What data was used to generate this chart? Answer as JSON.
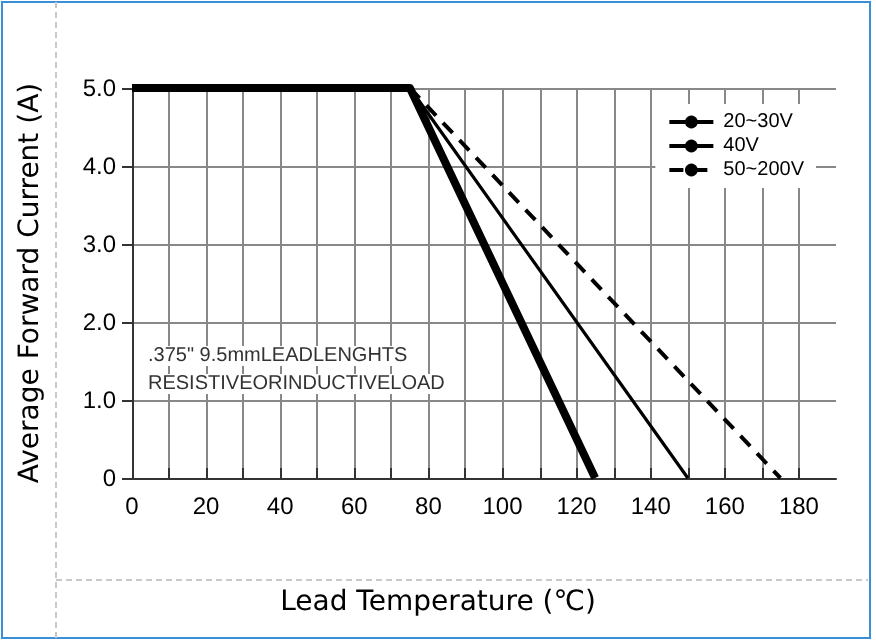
{
  "chart_data": {
    "type": "line",
    "xlabel": "Lead Temperature (℃)",
    "ylabel": "Average Forward Current (A)",
    "annotations": [
      ".375\" 9.5mmLEADLENGHTS",
      "RESISTIVEORINDUCTIVELOAD"
    ],
    "series": [
      {
        "name": "20~30V",
        "color": "#000000",
        "line_style": "solid",
        "x": [
          0,
          75,
          125
        ],
        "values": [
          5,
          5,
          0
        ]
      },
      {
        "name": "40V",
        "color": "#000000",
        "line_style": "solid",
        "x": [
          0,
          75,
          150
        ],
        "values": [
          5,
          5,
          0
        ]
      },
      {
        "name": "50~200V",
        "color": "#000000",
        "line_style": "dashed",
        "x": [
          75,
          175
        ],
        "values": [
          5,
          0
        ]
      }
    ],
    "xlim": [
      0,
      190
    ],
    "xticks": [
      0,
      {
        "value": 10,
        "label": null
      },
      20,
      {
        "value": 30,
        "label": null
      },
      40,
      {
        "value": 50,
        "label": null
      },
      60,
      {
        "value": 70,
        "label": null
      },
      80,
      {
        "value": 90,
        "label": null
      },
      100,
      {
        "value": 110,
        "label": null
      },
      120,
      {
        "value": 130,
        "label": null
      },
      140,
      {
        "value": 150,
        "label": null
      },
      160,
      {
        "value": 170,
        "label": null
      },
      180
    ],
    "ylim": [
      0,
      5
    ],
    "yticks": [
      0,
      {
        "value": 1,
        "label": "1.0"
      },
      {
        "value": 2,
        "label": "2.0"
      },
      {
        "value": 3,
        "label": "3.0"
      },
      {
        "value": 4,
        "label": "4.0"
      },
      {
        "value": 5,
        "label": "5.0"
      }
    ],
    "grid": true,
    "legend": "top right",
    "marker": "none"
  }
}
